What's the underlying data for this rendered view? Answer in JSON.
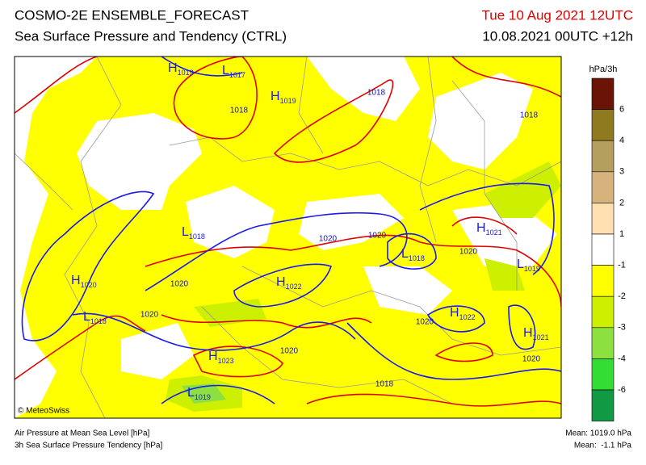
{
  "header": {
    "title": "COSMO-2E ENSEMBLE_FORECAST",
    "subtitle": "Sea Surface Pressure and Tendency (CTRL)",
    "valid": "Tue 10 Aug 2021 12UTC",
    "run": "10.08.2021 00UTC +12h"
  },
  "legend": {
    "unit": "hPa/3h",
    "labels": [
      "6",
      "4",
      "3",
      "2",
      "1",
      "-1",
      "-2",
      "-3",
      "-4",
      "-6"
    ],
    "colors": [
      "#6b1306",
      "#8f7a1f",
      "#b59f5f",
      "#d8b27c",
      "#ffe0b0",
      "#ffffff",
      "#ffff00",
      "#ccf000",
      "#8ce040",
      "#33dd33",
      "#119944"
    ]
  },
  "map": {
    "centers": [
      {
        "letter": "H",
        "value": "1019"
      },
      {
        "letter": "L",
        "value": "1017"
      },
      {
        "letter": "H",
        "value": "1019"
      },
      {
        "letter": "L",
        "value": "1018"
      },
      {
        "letter": "H",
        "value": "1020"
      },
      {
        "letter": "L",
        "value": "1018"
      },
      {
        "letter": "H",
        "value": "1022"
      },
      {
        "letter": "L",
        "value": "1018"
      },
      {
        "letter": "H",
        "value": "1021"
      },
      {
        "letter": "L",
        "value": "1019"
      },
      {
        "letter": "H",
        "value": "1022"
      },
      {
        "letter": "H",
        "value": "1021"
      },
      {
        "letter": "H",
        "value": "1023"
      },
      {
        "letter": "L",
        "value": "1019"
      }
    ],
    "contour_labels": [
      "1018",
      "1018",
      "1018",
      "1020",
      "1020",
      "1020",
      "1020",
      "1020",
      "1020",
      "1020",
      "1020",
      "1018"
    ]
  },
  "footer": {
    "copyright": "© MeteoSwiss",
    "line1": "Air Pressure at Mean Sea Level [hPa]",
    "line2": "3h Sea Surface Pressure Tendency [hPa]",
    "mean1": "Mean: 1019.0 hPa",
    "mean2": "Mean:  -1.1 hPa"
  }
}
